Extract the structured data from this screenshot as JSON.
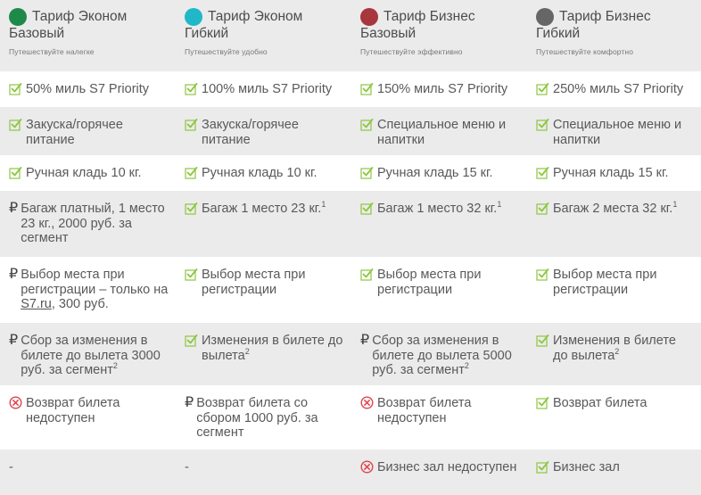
{
  "tariffs": [
    {
      "title_line1": "Тариф Эконом",
      "title_line2": "Базовый",
      "tagline": "Путешествуйте налегке",
      "color": "#1e8a4a"
    },
    {
      "title_line1": "Тариф Эконом",
      "title_line2": "Гибкий",
      "tagline": "Путешествуйте удобно",
      "color": "#20b8c8"
    },
    {
      "title_line1": "Тариф Бизнес",
      "title_line2": "Базовый",
      "tagline": "Путешествуйте эффективно",
      "color": "#a8363d"
    },
    {
      "title_line1": "Тариф Бизнес",
      "title_line2": "Гибкий",
      "tagline": "Путешествуйте комфортно",
      "color": "#666666"
    }
  ],
  "rows": [
    {
      "height": 40,
      "alt": false,
      "cells": [
        {
          "icon": "check",
          "text": "50% миль S7 Priority"
        },
        {
          "icon": "check",
          "text": "100% миль S7 Priority"
        },
        {
          "icon": "check",
          "text": "150% миль S7 Priority"
        },
        {
          "icon": "check",
          "text": "250% миль S7 Priority"
        }
      ]
    },
    {
      "height": 54,
      "alt": true,
      "cells": [
        {
          "icon": "check",
          "text": "Закуска/горячее питание"
        },
        {
          "icon": "check",
          "text": "Закуска/горячее питание"
        },
        {
          "icon": "check",
          "text": "Специальное меню и напитки"
        },
        {
          "icon": "check",
          "text": "Специальное меню и напитки"
        }
      ]
    },
    {
      "height": 40,
      "alt": false,
      "cells": [
        {
          "icon": "check",
          "text": "Ручная кладь 10 кг."
        },
        {
          "icon": "check",
          "text": "Ручная кладь 10 кг."
        },
        {
          "icon": "check",
          "text": "Ручная кладь 15 кг."
        },
        {
          "icon": "check",
          "text": "Ручная кладь 15 кг."
        }
      ]
    },
    {
      "height": 74,
      "alt": true,
      "cells": [
        {
          "icon": "ruble",
          "text": "Багаж платный, 1 место 23 кг., 2000 руб. за сегмент"
        },
        {
          "icon": "check",
          "text": "Багаж 1 место 23 кг.",
          "sup": "1"
        },
        {
          "icon": "check",
          "text": "Багаж 1 место 32 кг.",
          "sup": "1"
        },
        {
          "icon": "check",
          "text": "Багаж 2 места 32 кг.",
          "sup": "1"
        }
      ]
    },
    {
      "height": 74,
      "alt": false,
      "cells": [
        {
          "icon": "ruble",
          "text": "Выбор места при регистрации – только на ",
          "link": "S7.ru",
          "after": ", 300 руб."
        },
        {
          "icon": "check",
          "text": "Выбор места при регистрации"
        },
        {
          "icon": "check",
          "text": "Выбор места при регистрации"
        },
        {
          "icon": "check",
          "text": "Выбор места при регистрации"
        }
      ]
    },
    {
      "height": 70,
      "alt": true,
      "cells": [
        {
          "icon": "ruble",
          "text": "Сбор за изменения в билете до вылета 3000 руб. за сегмент",
          "sup": "2"
        },
        {
          "icon": "check",
          "text": "Изменения в билете до вылета",
          "sup": "2"
        },
        {
          "icon": "ruble",
          "text": "Сбор за изменения в билете до вылета 5000 руб. за сегмент",
          "sup": "2"
        },
        {
          "icon": "check",
          "text": "Изменения в билете до вылета",
          "sup": "2"
        }
      ]
    },
    {
      "height": 72,
      "alt": false,
      "cells": [
        {
          "icon": "cross",
          "text": "Возврат билета недоступен"
        },
        {
          "icon": "ruble",
          "text": "Возврат билета  со сбором 1000 руб. за сегмент"
        },
        {
          "icon": "cross",
          "text": "Возврат билета недоступен"
        },
        {
          "icon": "check",
          "text": "Возврат билета"
        }
      ]
    },
    {
      "height": 51,
      "alt": true,
      "cells": [
        {
          "icon": "none",
          "text": "-"
        },
        {
          "icon": "none",
          "text": "-"
        },
        {
          "icon": "cross",
          "text": "Бизнес зал недоступен"
        },
        {
          "icon": "check",
          "text": "Бизнес зал"
        }
      ]
    }
  ],
  "icons": {
    "check_color": "#8dc63f",
    "cross_color": "#e0434f"
  }
}
